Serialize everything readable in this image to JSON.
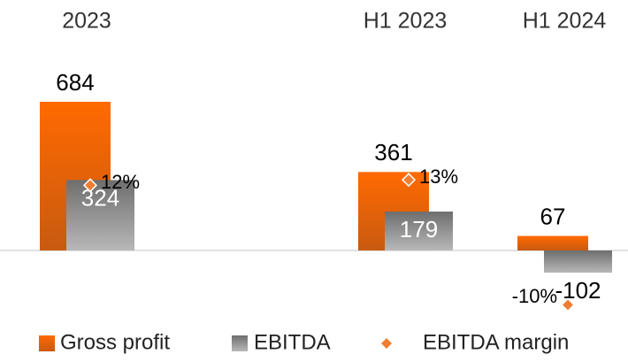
{
  "chart_data": {
    "type": "bar",
    "categories": [
      "2023",
      null,
      "H1 2023",
      "H1 2024"
    ],
    "series": [
      {
        "name": "Gross profit",
        "color": "#f26b00",
        "values": [
          684,
          null,
          361,
          67
        ]
      },
      {
        "name": "EBITDA",
        "color": "#8c8c8c",
        "values": [
          324,
          null,
          179,
          -102
        ]
      },
      {
        "name": "EBITDA margin",
        "color": "#ee7d31",
        "type": "marker",
        "axis": "y2",
        "values": [
          12,
          null,
          13,
          -10
        ],
        "value_labels": [
          "12%",
          null,
          "13%",
          "-10%"
        ]
      }
    ],
    "ylim": [
      -300,
      800
    ],
    "y2lim": [
      -12,
      32
    ],
    "legend": "bottom"
  }
}
